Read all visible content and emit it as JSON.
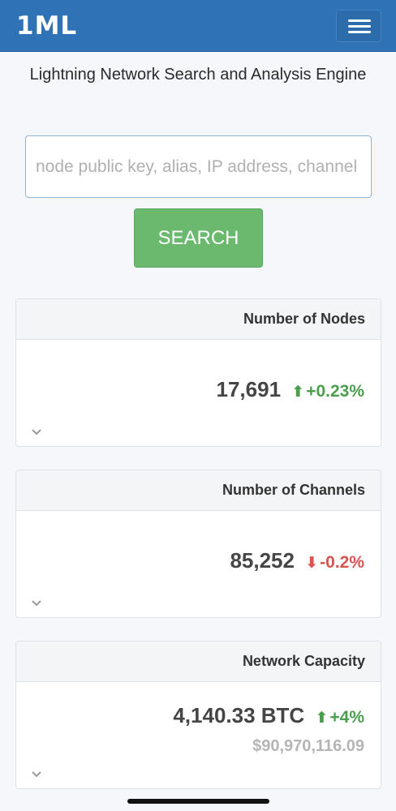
{
  "header": {
    "brand": "1ML",
    "menu_icon": "hamburger-menu-icon"
  },
  "tagline": "Lightning Network Search and Analysis Engine",
  "search": {
    "placeholder": "node public key, alias, IP address, channel",
    "value": "",
    "button_label": "SEARCH"
  },
  "cards": [
    {
      "title": "Number of Nodes",
      "value": "17,691",
      "direction": "up",
      "change": "+0.23%",
      "sub_value": ""
    },
    {
      "title": "Number of Channels",
      "value": "85,252",
      "direction": "down",
      "change": "-0.2%",
      "sub_value": ""
    },
    {
      "title": "Network Capacity",
      "value": "4,140.33 BTC",
      "direction": "up",
      "change": "+4%",
      "sub_value": "$90,970,116.09"
    }
  ],
  "colors": {
    "navbar": "#2f72b5",
    "search_button": "#6ab96e",
    "positive": "#4a9e4e",
    "negative": "#d9534f"
  }
}
